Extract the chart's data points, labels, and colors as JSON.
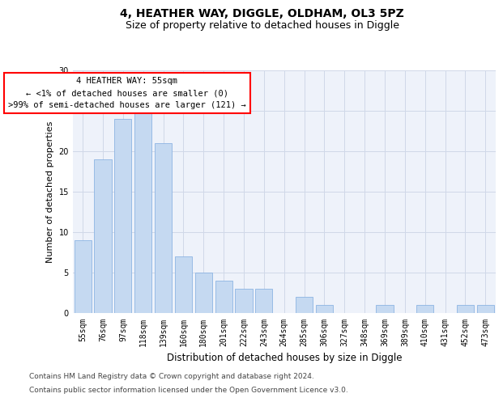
{
  "title": "4, HEATHER WAY, DIGGLE, OLDHAM, OL3 5PZ",
  "subtitle": "Size of property relative to detached houses in Diggle",
  "xlabel": "Distribution of detached houses by size in Diggle",
  "ylabel": "Number of detached properties",
  "categories": [
    "55sqm",
    "76sqm",
    "97sqm",
    "118sqm",
    "139sqm",
    "160sqm",
    "180sqm",
    "201sqm",
    "222sqm",
    "243sqm",
    "264sqm",
    "285sqm",
    "306sqm",
    "327sqm",
    "348sqm",
    "369sqm",
    "389sqm",
    "410sqm",
    "431sqm",
    "452sqm",
    "473sqm"
  ],
  "values": [
    9,
    19,
    24,
    25,
    21,
    7,
    5,
    4,
    3,
    3,
    0,
    2,
    1,
    0,
    0,
    1,
    0,
    1,
    0,
    1,
    1
  ],
  "bar_color": "#c5d9f1",
  "bar_edgecolor": "#8db4e2",
  "grid_color": "#d0d8e8",
  "background_color": "#eef2fa",
  "annotation_line1": "4 HEATHER WAY: 55sqm",
  "annotation_line2": "← <1% of detached houses are smaller (0)",
  "annotation_line3": ">99% of semi-detached houses are larger (121) →",
  "annotation_box_color": "#ff0000",
  "ylim": [
    0,
    30
  ],
  "yticks": [
    0,
    5,
    10,
    15,
    20,
    25,
    30
  ],
  "footer_line1": "Contains HM Land Registry data © Crown copyright and database right 2024.",
  "footer_line2": "Contains public sector information licensed under the Open Government Licence v3.0.",
  "title_fontsize": 10,
  "subtitle_fontsize": 9,
  "xlabel_fontsize": 8.5,
  "ylabel_fontsize": 8,
  "tick_fontsize": 7,
  "footer_fontsize": 6.5,
  "annotation_fontsize": 7.5
}
